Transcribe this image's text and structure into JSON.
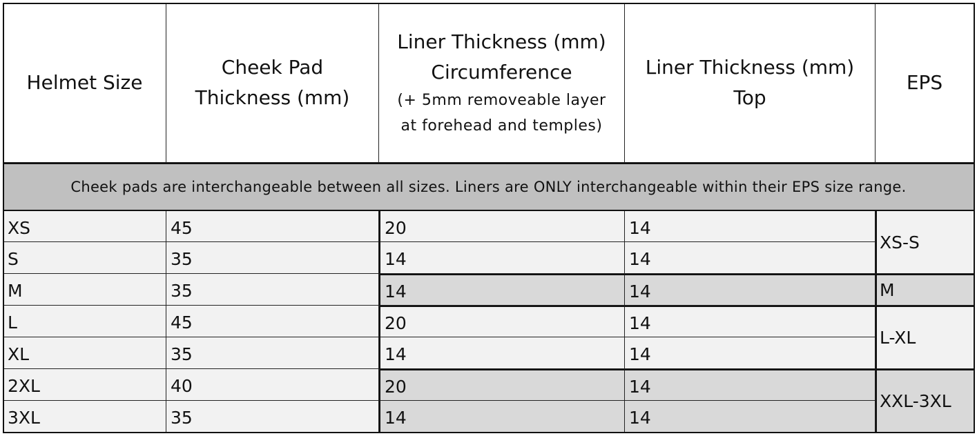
{
  "headers": {
    "size": "Helmet Size",
    "cheek": [
      "Cheek Pad",
      "Thickness (mm)"
    ],
    "circ": [
      "Liner Thickness (mm)",
      "Circumference",
      "(+ 5mm removeable layer",
      "at forehead and temples)"
    ],
    "top": [
      "Liner Thickness (mm)",
      "Top"
    ],
    "eps": "EPS"
  },
  "note": "Cheek pads are interchangeable between all sizes. Liners are ONLY interchangeable within their EPS size range.",
  "rows": [
    {
      "size": "XS",
      "cheek": "45",
      "circ": "20",
      "top": "14"
    },
    {
      "size": "S",
      "cheek": "35",
      "circ": "14",
      "top": "14"
    },
    {
      "size": "M",
      "cheek": "35",
      "circ": "14",
      "top": "14"
    },
    {
      "size": "L",
      "cheek": "45",
      "circ": "20",
      "top": "14"
    },
    {
      "size": "XL",
      "cheek": "35",
      "circ": "14",
      "top": "14"
    },
    {
      "size": "2XL",
      "cheek": "40",
      "circ": "20",
      "top": "14"
    },
    {
      "size": "3XL",
      "cheek": "35",
      "circ": "14",
      "top": "14"
    }
  ],
  "eps_groups": [
    "XS-S",
    "M",
    "L-XL",
    "XXL-3XL"
  ],
  "colors": {
    "banner": "#c0c0c0",
    "row": "#f2f2f2",
    "shaded": "#d9d9d9"
  }
}
